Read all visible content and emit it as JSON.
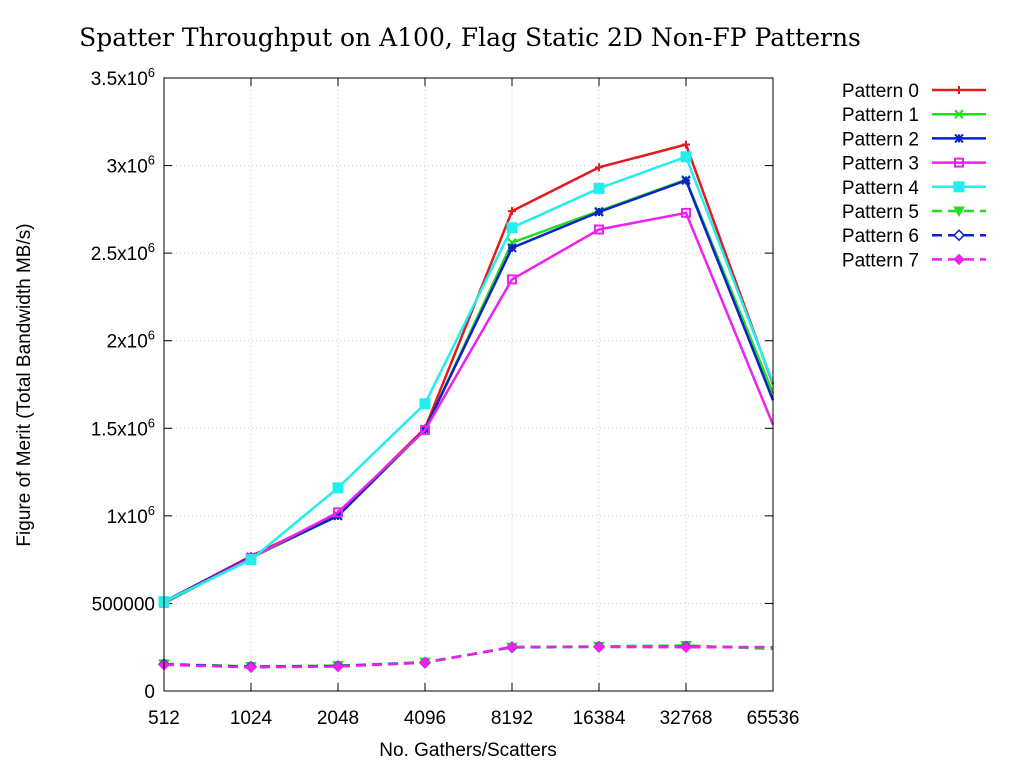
{
  "chart_data": {
    "type": "line",
    "title": "Spatter Throughput on A100, Flag Static 2D Non-FP Patterns",
    "xlabel": "No. Gathers/Scatters",
    "ylabel": "Figure of Merit (Total Bandwidth MB/s)",
    "categories": [
      "512",
      "1024",
      "2048",
      "4096",
      "8192",
      "16384",
      "32768",
      "65536"
    ],
    "ylim": [
      0,
      3500000
    ],
    "y_ticks": [
      {
        "value": 0,
        "base": "0",
        "exp": ""
      },
      {
        "value": 500000,
        "base": "500000",
        "exp": ""
      },
      {
        "value": 1000000,
        "base": "1x10",
        "exp": "6"
      },
      {
        "value": 1500000,
        "base": "1.5x10",
        "exp": "6"
      },
      {
        "value": 2000000,
        "base": "2x10",
        "exp": "6"
      },
      {
        "value": 2500000,
        "base": "2.5x10",
        "exp": "6"
      },
      {
        "value": 3000000,
        "base": "3x10",
        "exp": "6"
      },
      {
        "value": 3500000,
        "base": "3.5x10",
        "exp": "6"
      }
    ],
    "grid": true,
    "legend_position": "right",
    "series": [
      {
        "name": "Pattern 0",
        "color": "#e41a1c",
        "marker": "plus",
        "dashed": false,
        "values": [
          510000,
          770000,
          1010000,
          1500000,
          2740000,
          2990000,
          3120000,
          1750000
        ]
      },
      {
        "name": "Pattern 1",
        "color": "#22dd22",
        "marker": "cross",
        "dashed": false,
        "values": [
          500000,
          760000,
          1000000,
          1490000,
          2560000,
          2740000,
          2920000,
          1700000
        ]
      },
      {
        "name": "Pattern 2",
        "color": "#0a22c8",
        "marker": "star",
        "dashed": false,
        "values": [
          510000,
          765000,
          1000000,
          1495000,
          2530000,
          2735000,
          2915000,
          1660000
        ]
      },
      {
        "name": "Pattern 3",
        "color": "#ee22ee",
        "marker": "open-square",
        "dashed": false,
        "values": [
          505000,
          760000,
          1020000,
          1490000,
          2350000,
          2635000,
          2730000,
          1520000
        ]
      },
      {
        "name": "Pattern 4",
        "color": "#22eeee",
        "marker": "filled-square",
        "dashed": false,
        "values": [
          510000,
          750000,
          1160000,
          1640000,
          2645000,
          2870000,
          3050000,
          1760000
        ]
      },
      {
        "name": "Pattern 5",
        "color": "#22dd22",
        "marker": "triangle-down",
        "dashed": true,
        "values": [
          155000,
          140000,
          145000,
          165000,
          250000,
          255000,
          260000,
          240000
        ]
      },
      {
        "name": "Pattern 6",
        "color": "#0a22c8",
        "marker": "open-diamond",
        "dashed": true,
        "values": [
          152000,
          138000,
          142000,
          162000,
          250000,
          252000,
          252000,
          250000
        ]
      },
      {
        "name": "Pattern 7",
        "color": "#ee22ee",
        "marker": "filled-diamond",
        "dashed": true,
        "values": [
          150000,
          135000,
          140000,
          162000,
          252000,
          252000,
          250000,
          250000
        ]
      }
    ]
  }
}
